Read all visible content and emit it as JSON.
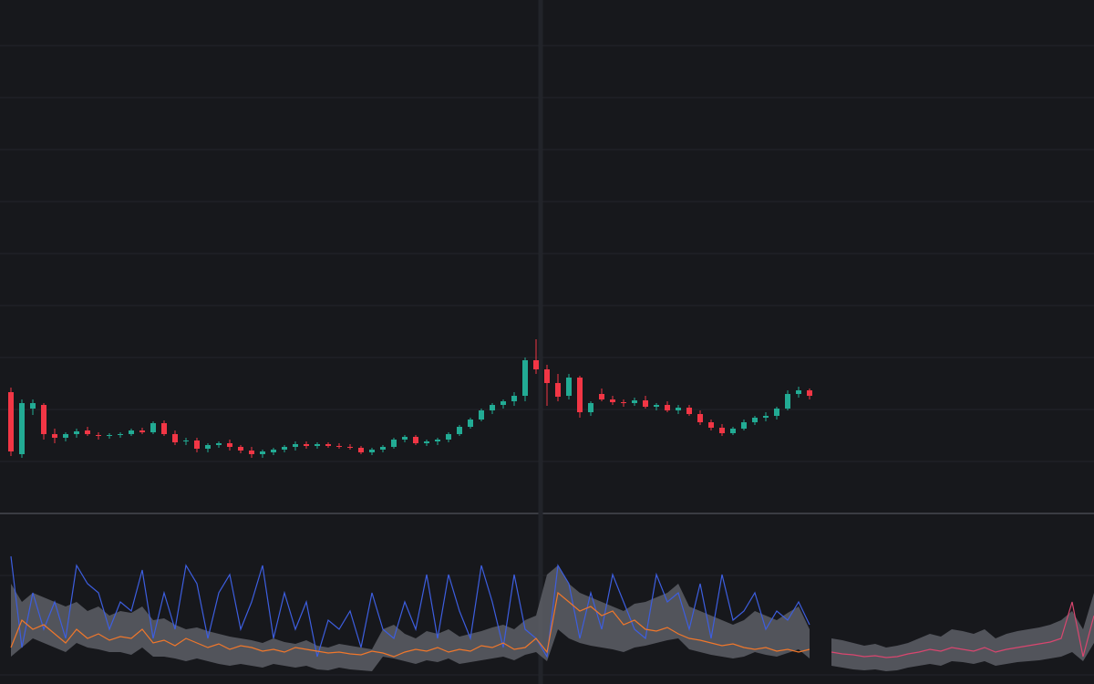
{
  "chart_data": {
    "type": "candlestick",
    "grid_levels": [
      510,
      453,
      396,
      339,
      282,
      225,
      168,
      111,
      54
    ],
    "indicator_grid_levels": [
      119,
      10
    ],
    "up_color": "#22ab94",
    "down_color": "#f23645",
    "candles": [
      [
        130,
        135,
        60,
        65
      ],
      [
        62,
        122,
        58,
        118
      ],
      [
        112,
        122,
        105,
        118
      ],
      [
        116,
        118,
        78,
        84
      ],
      [
        84,
        90,
        74,
        80
      ],
      [
        80,
        86,
        76,
        84
      ],
      [
        84,
        90,
        80,
        87
      ],
      [
        88,
        92,
        82,
        84
      ],
      [
        83,
        86,
        78,
        82
      ],
      [
        82,
        85,
        79,
        83
      ],
      [
        83,
        86,
        80,
        84
      ],
      [
        84,
        90,
        82,
        88
      ],
      [
        88,
        91,
        84,
        86
      ],
      [
        86,
        98,
        84,
        96
      ],
      [
        96,
        99,
        82,
        84
      ],
      [
        84,
        88,
        72,
        75
      ],
      [
        76,
        80,
        72,
        77
      ],
      [
        77,
        80,
        64,
        68
      ],
      [
        68,
        74,
        64,
        72
      ],
      [
        72,
        76,
        69,
        74
      ],
      [
        74,
        78,
        66,
        70
      ],
      [
        70,
        72,
        63,
        66
      ],
      [
        66,
        70,
        58,
        62
      ],
      [
        62,
        67,
        58,
        65
      ],
      [
        64,
        69,
        61,
        67
      ],
      [
        67,
        72,
        64,
        70
      ],
      [
        70,
        76,
        66,
        73
      ],
      [
        73,
        76,
        68,
        71
      ],
      [
        71,
        75,
        68,
        73
      ],
      [
        73,
        75,
        69,
        71
      ],
      [
        71,
        74,
        68,
        70
      ],
      [
        70,
        73,
        67,
        69
      ],
      [
        69,
        71,
        62,
        64
      ],
      [
        64,
        69,
        61,
        67
      ],
      [
        67,
        72,
        64,
        70
      ],
      [
        70,
        80,
        68,
        78
      ],
      [
        78,
        83,
        75,
        81
      ],
      [
        81,
        83,
        72,
        74
      ],
      [
        74,
        78,
        71,
        76
      ],
      [
        76,
        80,
        72,
        78
      ],
      [
        78,
        86,
        75,
        84
      ],
      [
        84,
        94,
        82,
        92
      ],
      [
        92,
        102,
        90,
        100
      ],
      [
        100,
        112,
        98,
        110
      ],
      [
        110,
        118,
        106,
        116
      ],
      [
        116,
        122,
        112,
        120
      ],
      [
        120,
        130,
        115,
        126
      ],
      [
        126,
        168,
        120,
        165
      ],
      [
        165,
        188,
        150,
        155
      ],
      [
        155,
        160,
        115,
        140
      ],
      [
        140,
        150,
        120,
        125
      ],
      [
        126,
        150,
        122,
        146
      ],
      [
        146,
        148,
        102,
        108
      ],
      [
        108,
        120,
        104,
        118
      ],
      [
        128,
        134,
        120,
        122
      ],
      [
        122,
        126,
        116,
        119
      ],
      [
        119,
        122,
        114,
        118
      ],
      [
        118,
        124,
        115,
        121
      ],
      [
        121,
        126,
        112,
        114
      ],
      [
        114,
        118,
        110,
        116
      ],
      [
        116,
        120,
        108,
        110
      ],
      [
        110,
        116,
        106,
        113
      ],
      [
        113,
        116,
        104,
        106
      ],
      [
        106,
        110,
        94,
        97
      ],
      [
        97,
        100,
        88,
        91
      ],
      [
        91,
        95,
        82,
        85
      ],
      [
        85,
        92,
        83,
        90
      ],
      [
        90,
        100,
        88,
        97
      ],
      [
        97,
        104,
        94,
        102
      ],
      [
        102,
        108,
        98,
        104
      ],
      [
        104,
        114,
        100,
        112
      ],
      [
        112,
        132,
        110,
        128
      ],
      [
        128,
        136,
        124,
        132
      ],
      [
        132,
        134,
        122,
        126
      ]
    ],
    "band": {
      "color": "#5d5f66",
      "upper": [
        110,
        90,
        100,
        95,
        90,
        85,
        90,
        80,
        85,
        75,
        80,
        78,
        85,
        70,
        72,
        65,
        60,
        62,
        58,
        55,
        52,
        50,
        48,
        45,
        50,
        46,
        44,
        48,
        42,
        40,
        44,
        42,
        40,
        38,
        60,
        65,
        55,
        50,
        58,
        55,
        60,
        52,
        55,
        58,
        62,
        65,
        60,
        70,
        75,
        120,
        130,
        110,
        100,
        95,
        90,
        85,
        80,
        88,
        90,
        95,
        100,
        110,
        85,
        80,
        75,
        70,
        65,
        70,
        80,
        75,
        70,
        78,
        85,
        60,
        null,
        50,
        48,
        45,
        42,
        44,
        40,
        42,
        45,
        50,
        55,
        52,
        60,
        58,
        55,
        60,
        50,
        55,
        58,
        60,
        62,
        65,
        70,
        80,
        60,
        100
      ],
      "lower": [
        30,
        40,
        50,
        45,
        40,
        35,
        45,
        40,
        38,
        35,
        35,
        32,
        40,
        30,
        30,
        28,
        25,
        28,
        25,
        22,
        20,
        22,
        20,
        18,
        22,
        20,
        18,
        20,
        16,
        15,
        18,
        16,
        15,
        14,
        30,
        28,
        25,
        22,
        26,
        24,
        28,
        22,
        24,
        26,
        28,
        30,
        26,
        32,
        35,
        25,
        60,
        50,
        45,
        42,
        40,
        38,
        35,
        40,
        42,
        45,
        48,
        50,
        38,
        35,
        32,
        30,
        28,
        30,
        35,
        32,
        30,
        34,
        38,
        28,
        null,
        20,
        18,
        16,
        15,
        16,
        14,
        15,
        18,
        20,
        22,
        20,
        25,
        24,
        22,
        25,
        20,
        22,
        24,
        25,
        26,
        28,
        30,
        35,
        25,
        45
      ]
    },
    "series": [
      {
        "color": "#3d5ee0",
        "values": [
          140,
          40,
          100,
          60,
          90,
          50,
          130,
          110,
          100,
          60,
          90,
          80,
          125,
          50,
          100,
          60,
          130,
          110,
          50,
          100,
          120,
          60,
          90,
          130,
          50,
          100,
          60,
          90,
          30,
          70,
          60,
          80,
          40,
          100,
          60,
          50,
          90,
          60,
          120,
          50,
          120,
          80,
          50,
          130,
          90,
          40,
          120,
          60,
          50,
          30,
          130,
          110,
          50,
          100,
          60,
          120,
          90,
          60,
          50,
          120,
          90,
          100,
          60,
          110,
          50,
          120,
          70,
          80,
          100,
          60,
          80,
          70,
          90,
          65
        ]
      },
      {
        "color": "#f0772b",
        "values": [
          40,
          70,
          60,
          65,
          55,
          45,
          60,
          50,
          55,
          48,
          52,
          50,
          60,
          45,
          48,
          42,
          50,
          45,
          40,
          44,
          38,
          42,
          40,
          36,
          38,
          35,
          40,
          38,
          36,
          34,
          35,
          33,
          32,
          36,
          34,
          30,
          35,
          38,
          36,
          40,
          35,
          38,
          36,
          42,
          40,
          45,
          38,
          40,
          50,
          35,
          100,
          90,
          80,
          85,
          75,
          80,
          65,
          70,
          60,
          58,
          62,
          55,
          50,
          48,
          45,
          42,
          44,
          40,
          38,
          40,
          36,
          38,
          35,
          38
        ]
      },
      {
        "color": "#d9466f",
        "values": [
          null,
          null,
          null,
          null,
          null,
          null,
          null,
          null,
          null,
          null,
          null,
          null,
          null,
          null,
          null,
          null,
          null,
          null,
          null,
          null,
          null,
          null,
          null,
          null,
          null,
          null,
          null,
          null,
          null,
          null,
          null,
          null,
          null,
          null,
          null,
          null,
          null,
          null,
          null,
          null,
          null,
          null,
          null,
          null,
          null,
          null,
          null,
          null,
          null,
          null,
          null,
          null,
          null,
          null,
          null,
          null,
          null,
          null,
          null,
          null,
          null,
          null,
          null,
          null,
          null,
          null,
          null,
          null,
          null,
          null,
          null,
          null,
          null,
          null,
          null,
          35,
          33,
          32,
          30,
          31,
          29,
          30,
          33,
          35,
          38,
          36,
          40,
          38,
          36,
          40,
          35,
          38,
          40,
          42,
          44,
          46,
          50,
          90,
          30,
          75
        ]
      }
    ]
  }
}
